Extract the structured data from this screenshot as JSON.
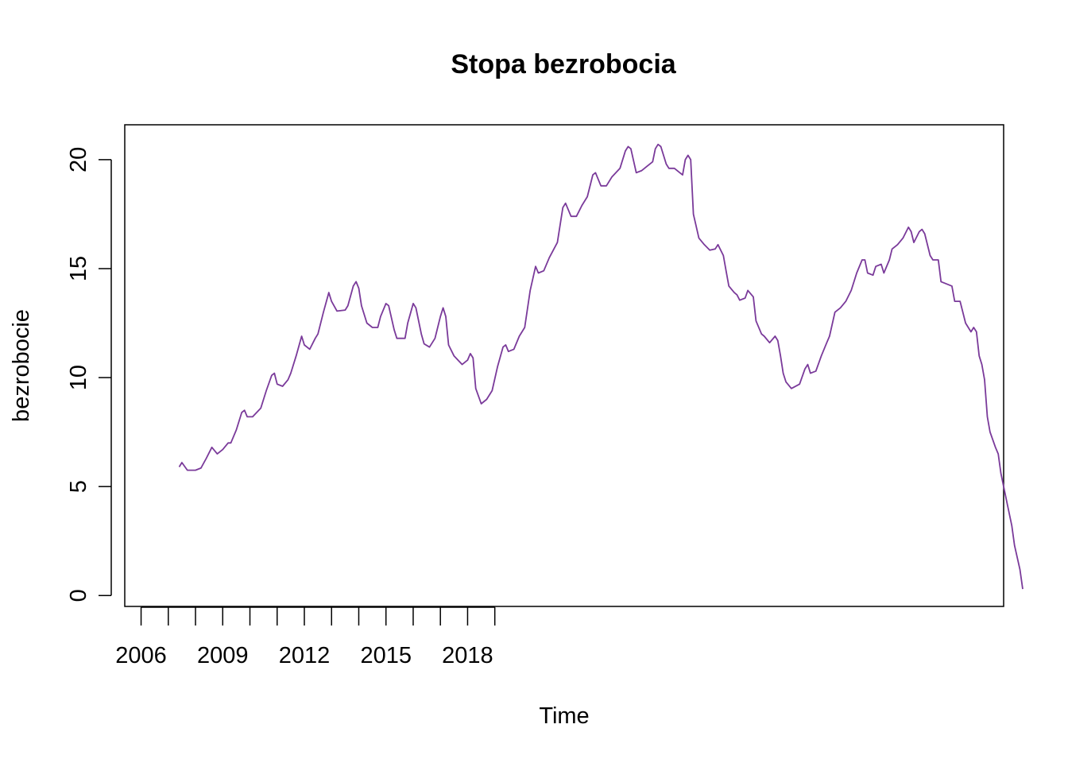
{
  "chart_data": {
    "type": "line",
    "title": "Stopa bezrobocia",
    "xlabel": "Time",
    "ylabel": "bezrobocie",
    "x_ticks": [
      2006,
      2007,
      2008,
      2009,
      2010,
      2011,
      2012,
      2013,
      2014,
      2015,
      2016,
      2017,
      2018,
      2019
    ],
    "x_tick_labels": [
      {
        "x": 2006,
        "label": "2006"
      },
      {
        "x": 2009,
        "label": "2009"
      },
      {
        "x": 2012,
        "label": "2012"
      },
      {
        "x": 2015,
        "label": "2015"
      },
      {
        "x": 2018,
        "label": "2018"
      }
    ],
    "y_ticks": [
      {
        "y": 0,
        "label": "0"
      },
      {
        "y": 5,
        "label": "5"
      },
      {
        "y": 10,
        "label": "10"
      },
      {
        "y": 15,
        "label": "15"
      },
      {
        "y": 20,
        "label": "20"
      }
    ],
    "xlim": [
      2005.4,
      2037.7
    ],
    "ylim": [
      -0.5,
      21.6
    ],
    "grid": false,
    "line_color": "#7a3a9a",
    "series": [
      {
        "points": [
          [
            2007.4,
            5.9
          ],
          [
            2007.5,
            6.1
          ],
          [
            2007.7,
            5.75
          ],
          [
            2008.0,
            5.75
          ],
          [
            2008.2,
            5.85
          ],
          [
            2008.4,
            6.3
          ],
          [
            2008.6,
            6.8
          ],
          [
            2008.8,
            6.5
          ],
          [
            2009.0,
            6.7
          ],
          [
            2009.2,
            7.0
          ],
          [
            2009.3,
            7.0
          ],
          [
            2009.5,
            7.6
          ],
          [
            2009.7,
            8.4
          ],
          [
            2009.8,
            8.5
          ],
          [
            2009.9,
            8.2
          ],
          [
            2010.1,
            8.2
          ],
          [
            2010.4,
            8.6
          ],
          [
            2010.6,
            9.4
          ],
          [
            2010.8,
            10.1
          ],
          [
            2010.9,
            10.2
          ],
          [
            2011.0,
            9.7
          ],
          [
            2011.2,
            9.6
          ],
          [
            2011.4,
            9.9
          ],
          [
            2011.5,
            10.2
          ],
          [
            2011.7,
            11.0
          ],
          [
            2011.9,
            11.9
          ],
          [
            2012.0,
            11.5
          ],
          [
            2012.2,
            11.3
          ],
          [
            2012.4,
            11.8
          ],
          [
            2012.5,
            12.0
          ],
          [
            2012.7,
            13.0
          ],
          [
            2012.9,
            13.9
          ],
          [
            2013.0,
            13.5
          ],
          [
            2013.2,
            13.05
          ],
          [
            2013.5,
            13.1
          ],
          [
            2013.6,
            13.3
          ],
          [
            2013.8,
            14.2
          ],
          [
            2013.9,
            14.4
          ],
          [
            2014.0,
            14.1
          ],
          [
            2014.1,
            13.3
          ],
          [
            2014.3,
            12.5
          ],
          [
            2014.5,
            12.3
          ],
          [
            2014.7,
            12.3
          ],
          [
            2014.8,
            12.8
          ],
          [
            2015.0,
            13.4
          ],
          [
            2015.1,
            13.3
          ],
          [
            2015.3,
            12.2
          ],
          [
            2015.4,
            11.8
          ],
          [
            2015.7,
            11.8
          ],
          [
            2015.8,
            12.5
          ],
          [
            2016.0,
            13.4
          ],
          [
            2016.1,
            13.2
          ],
          [
            2016.3,
            12.0
          ],
          [
            2016.4,
            11.55
          ],
          [
            2016.6,
            11.4
          ],
          [
            2016.8,
            11.8
          ],
          [
            2016.9,
            12.3
          ],
          [
            2017.0,
            12.8
          ],
          [
            2017.1,
            13.2
          ],
          [
            2017.2,
            12.8
          ],
          [
            2017.3,
            11.5
          ],
          [
            2017.5,
            11.0
          ],
          [
            2017.8,
            10.6
          ],
          [
            2018.0,
            10.8
          ],
          [
            2018.1,
            11.1
          ],
          [
            2018.2,
            10.9
          ],
          [
            2018.3,
            9.5
          ],
          [
            2018.5,
            8.8
          ],
          [
            2018.7,
            9.0
          ],
          [
            2018.9,
            9.4
          ],
          [
            2019.1,
            10.5
          ],
          [
            2019.3,
            11.4
          ],
          [
            2019.4,
            11.5
          ],
          [
            2019.5,
            11.2
          ],
          [
            2019.7,
            11.3
          ],
          [
            2019.9,
            11.9
          ],
          [
            2020.1,
            12.3
          ],
          [
            2020.3,
            14.0
          ],
          [
            2020.5,
            15.1
          ],
          [
            2020.6,
            14.8
          ],
          [
            2020.8,
            14.9
          ],
          [
            2021.0,
            15.5
          ],
          [
            2021.3,
            16.2
          ],
          [
            2021.5,
            17.8
          ],
          [
            2021.6,
            18.0
          ],
          [
            2021.8,
            17.4
          ],
          [
            2022.0,
            17.4
          ],
          [
            2022.2,
            17.9
          ],
          [
            2022.4,
            18.3
          ],
          [
            2022.6,
            19.3
          ],
          [
            2022.7,
            19.4
          ],
          [
            2022.9,
            18.8
          ],
          [
            2023.1,
            18.8
          ],
          [
            2023.3,
            19.2
          ],
          [
            2023.6,
            19.6
          ],
          [
            2023.8,
            20.4
          ],
          [
            2023.9,
            20.6
          ],
          [
            2024.0,
            20.5
          ],
          [
            2024.2,
            19.4
          ],
          [
            2024.4,
            19.5
          ],
          [
            2024.6,
            19.7
          ],
          [
            2024.8,
            19.9
          ],
          [
            2024.9,
            20.5
          ],
          [
            2025.0,
            20.7
          ],
          [
            2025.1,
            20.6
          ],
          [
            2025.3,
            19.8
          ],
          [
            2025.4,
            19.6
          ],
          [
            2025.6,
            19.6
          ],
          [
            2025.8,
            19.4
          ],
          [
            2025.9,
            19.3
          ],
          [
            2026.0,
            20.0
          ],
          [
            2026.1,
            20.2
          ],
          [
            2026.2,
            20.0
          ],
          [
            2026.3,
            17.5
          ],
          [
            2026.5,
            16.4
          ],
          [
            2026.7,
            16.1
          ],
          [
            2026.9,
            15.85
          ],
          [
            2027.1,
            15.9
          ],
          [
            2027.2,
            16.1
          ],
          [
            2027.4,
            15.6
          ],
          [
            2027.5,
            14.9
          ],
          [
            2027.6,
            14.2
          ],
          [
            2027.8,
            13.9
          ],
          [
            2027.9,
            13.8
          ],
          [
            2028.0,
            13.55
          ],
          [
            2028.2,
            13.65
          ],
          [
            2028.3,
            14.0
          ],
          [
            2028.5,
            13.7
          ],
          [
            2028.6,
            12.6
          ],
          [
            2028.8,
            12.0
          ],
          [
            2028.9,
            11.9
          ],
          [
            2029.1,
            11.6
          ],
          [
            2029.3,
            11.9
          ],
          [
            2029.4,
            11.7
          ],
          [
            2029.5,
            11.0
          ],
          [
            2029.6,
            10.2
          ],
          [
            2029.7,
            9.8
          ],
          [
            2029.9,
            9.5
          ],
          [
            2030.2,
            9.7
          ],
          [
            2030.4,
            10.4
          ],
          [
            2030.5,
            10.6
          ],
          [
            2030.6,
            10.2
          ],
          [
            2030.8,
            10.3
          ],
          [
            2031.0,
            11.0
          ],
          [
            2031.2,
            11.6
          ],
          [
            2031.3,
            11.9
          ],
          [
            2031.5,
            13.0
          ],
          [
            2031.7,
            13.2
          ],
          [
            2031.9,
            13.5
          ],
          [
            2032.1,
            14.0
          ],
          [
            2032.3,
            14.8
          ],
          [
            2032.5,
            15.4
          ],
          [
            2032.6,
            15.4
          ],
          [
            2032.7,
            14.8
          ],
          [
            2032.9,
            14.7
          ],
          [
            2033.0,
            15.1
          ],
          [
            2033.2,
            15.2
          ],
          [
            2033.3,
            14.8
          ],
          [
            2033.5,
            15.4
          ],
          [
            2033.6,
            15.9
          ],
          [
            2033.8,
            16.1
          ],
          [
            2034.0,
            16.4
          ],
          [
            2034.2,
            16.9
          ],
          [
            2034.3,
            16.7
          ],
          [
            2034.4,
            16.2
          ],
          [
            2034.6,
            16.7
          ],
          [
            2034.7,
            16.8
          ],
          [
            2034.8,
            16.6
          ],
          [
            2035.0,
            15.6
          ],
          [
            2035.1,
            15.4
          ],
          [
            2035.3,
            15.4
          ],
          [
            2035.4,
            14.4
          ],
          [
            2035.6,
            14.3
          ],
          [
            2035.8,
            14.2
          ],
          [
            2035.9,
            13.5
          ],
          [
            2036.1,
            13.5
          ],
          [
            2036.3,
            12.5
          ],
          [
            2036.5,
            12.1
          ],
          [
            2036.6,
            12.3
          ],
          [
            2036.7,
            12.1
          ],
          [
            2036.8,
            11.0
          ],
          [
            2036.9,
            10.6
          ],
          [
            2037.0,
            9.9
          ],
          [
            2037.1,
            8.2
          ],
          [
            2037.2,
            7.5
          ],
          [
            2037.4,
            6.8
          ],
          [
            2037.5,
            6.5
          ],
          [
            2037.6,
            5.6
          ],
          [
            2037.8,
            4.4
          ],
          [
            2038.0,
            3.2
          ],
          [
            2038.1,
            2.3
          ],
          [
            2038.3,
            1.2
          ],
          [
            2038.4,
            0.3
          ]
        ]
      }
    ]
  }
}
